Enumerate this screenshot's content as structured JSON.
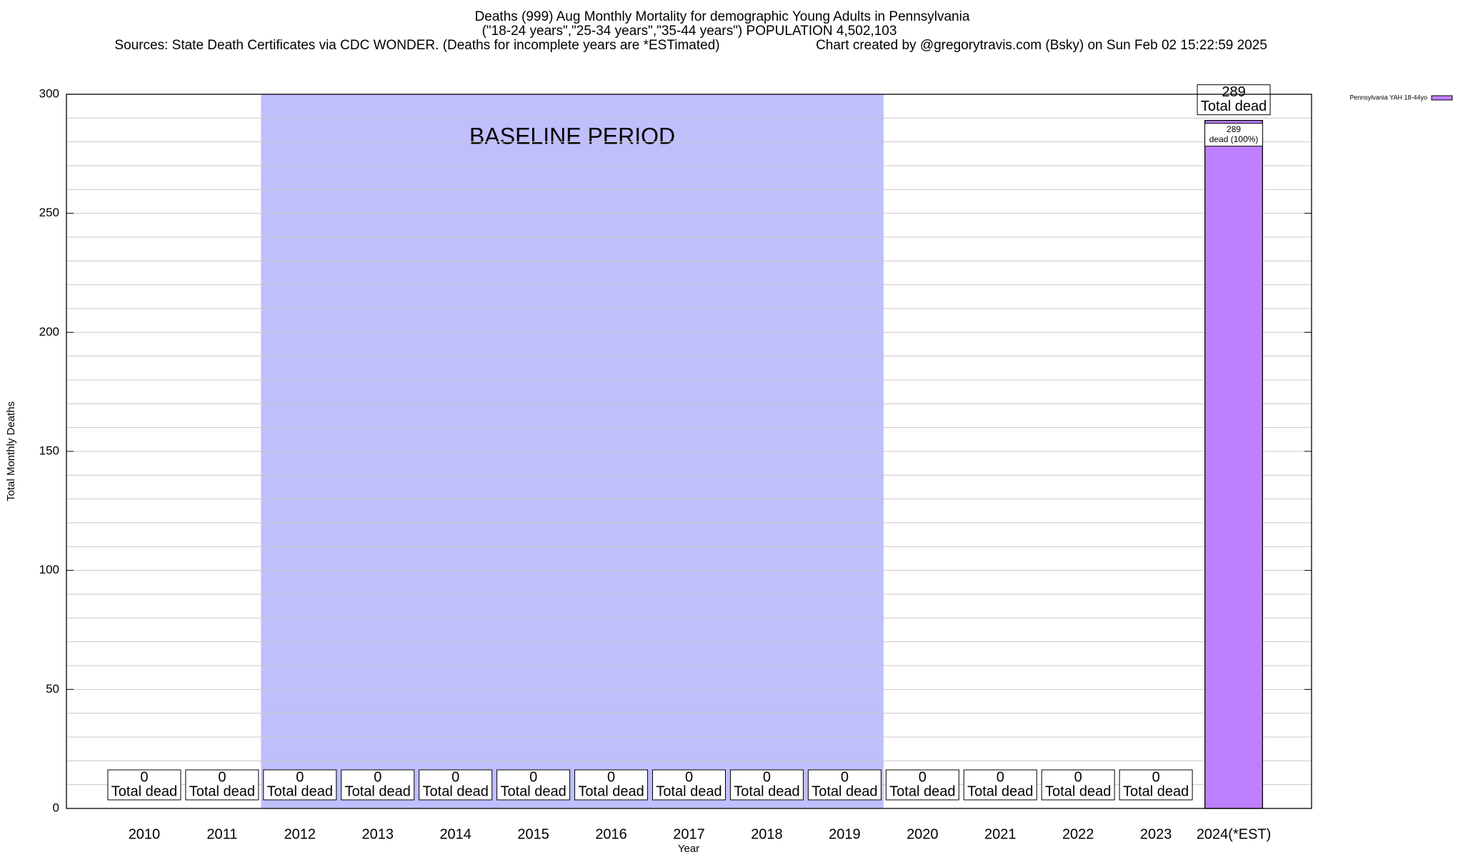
{
  "chart_data": {
    "type": "bar",
    "title": "Deaths (999) Aug Monthly Mortality for demographic Young Adults in Pennsylvania",
    "subtitle": "(\"18-24 years\",\"25-34 years\",\"35-44 years\") POPULATION 4,502,103",
    "source": "Sources: State Death Certificates via CDC WONDER. (Deaths for incomplete years are *ESTimated)",
    "credit": "Chart created by @gregorytravis.com (Bsky) on Sun Feb 02 15:22:59 2025",
    "x_label": "Year",
    "y_label": "Total Monthly Deaths",
    "categories": [
      "2010",
      "2011",
      "2012",
      "2013",
      "2014",
      "2015",
      "2016",
      "2017",
      "2018",
      "2019",
      "2020",
      "2021",
      "2022",
      "2023",
      "2024(*EST)"
    ],
    "series": [
      {
        "name": "Pennsylvania YAH 18-44yo",
        "color": "#bf80ff",
        "values": [
          0,
          0,
          0,
          0,
          0,
          0,
          0,
          0,
          0,
          0,
          0,
          0,
          0,
          0,
          289
        ],
        "inner_labels": [
          null,
          null,
          null,
          null,
          null,
          null,
          null,
          null,
          null,
          null,
          null,
          null,
          null,
          null,
          "dead (100%)"
        ]
      }
    ],
    "total_label": "Total dead",
    "shade": {
      "label": "BASELINE PERIOD",
      "from": "2012",
      "to": "2019",
      "color": "#bfbffe"
    },
    "ylim": [
      0,
      300
    ],
    "yticks": [
      0,
      50,
      100,
      150,
      200,
      250,
      300
    ],
    "minor_yticks": [
      10,
      20,
      30,
      40,
      60,
      70,
      80,
      90,
      110,
      120,
      130,
      140,
      160,
      170,
      180,
      190,
      210,
      220,
      230,
      240,
      260,
      270,
      280,
      290
    ],
    "grid": true,
    "legend": "top-right"
  }
}
